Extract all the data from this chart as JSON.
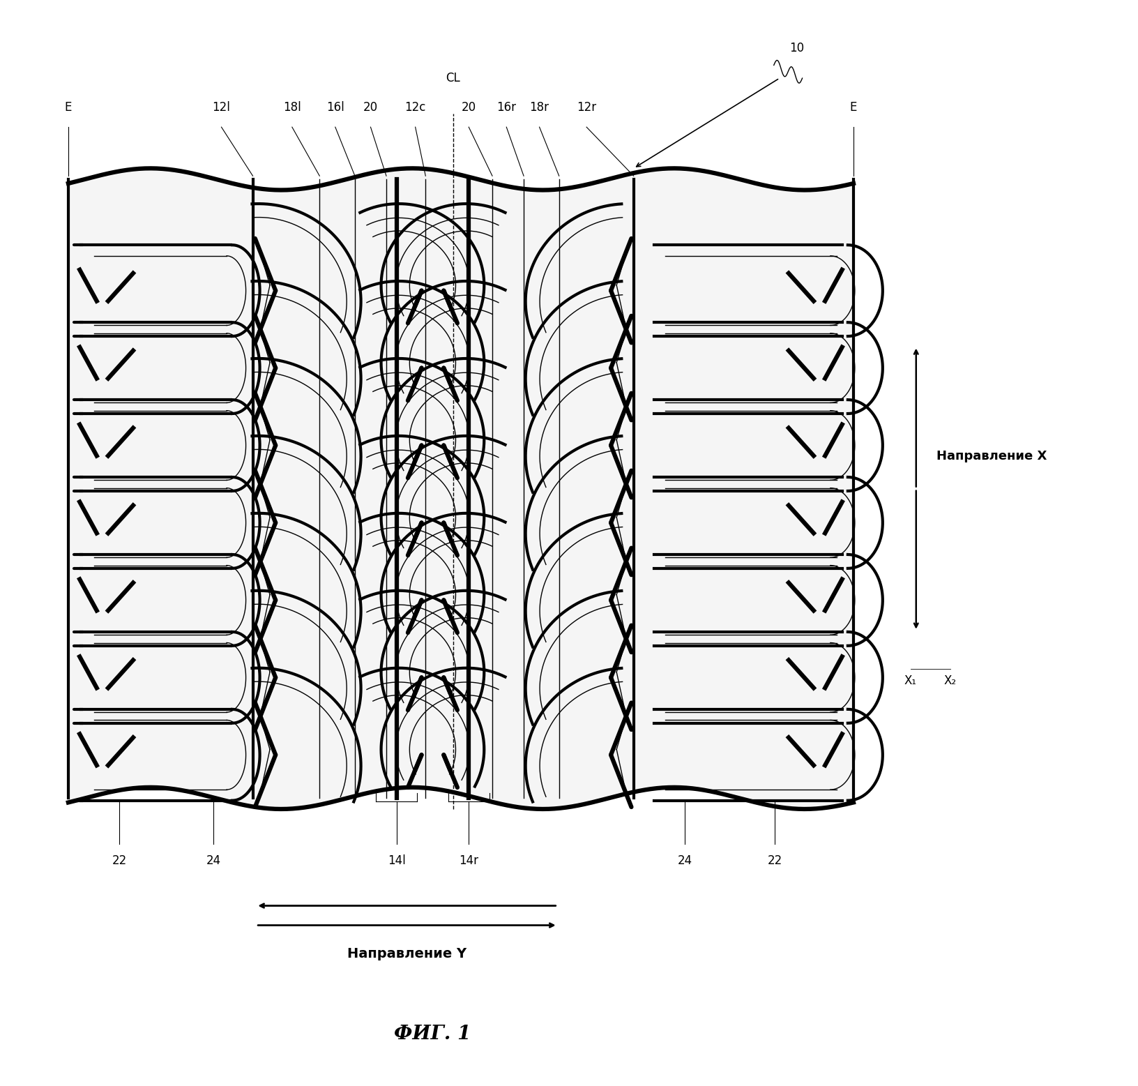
{
  "title": "ФИГ. 1",
  "background_color": "#ffffff",
  "fig_width": 16.32,
  "fig_height": 15.57,
  "label_fontsize": 12,
  "title_fontsize": 20,
  "dir_x_text": "Направление X",
  "dir_y_text": "Направление Y"
}
